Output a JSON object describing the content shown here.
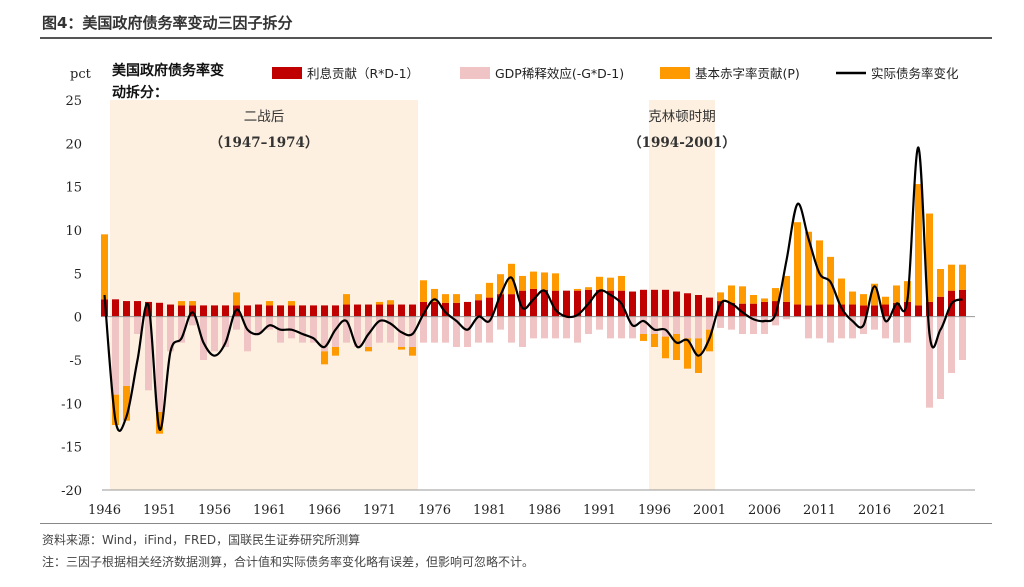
{
  "figure": {
    "title": "图4：美国政府债务率变动三因子拆分",
    "source": "资料来源：Wind，iFind，FRED，国联民生证券研究所测算",
    "note": "注：三因子根据相关经济数据测算，合计值和实际债务率变化略有误差，但影响可忽略不计。"
  },
  "chart_data": {
    "type": "bar",
    "title_lines": [
      "美国政府债务率变",
      "动拆分："
    ],
    "ylabel": "pct",
    "ylim": [
      -20,
      25
    ],
    "yticks": [
      25,
      20,
      15,
      10,
      5,
      0,
      -5,
      -10,
      -15,
      -20
    ],
    "xticks": [
      "1946",
      "1951",
      "1956",
      "1961",
      "1966",
      "1971",
      "1976",
      "1981",
      "1986",
      "1991",
      "1996",
      "2001",
      "2006",
      "2011",
      "2016",
      "2021"
    ],
    "legend_position": "top",
    "colors": {
      "interest": "#c00000",
      "gdp": "#f0c4c4",
      "deficit": "#ff9900",
      "actual": "#000000",
      "shade": "#fdf0e0"
    },
    "shaded_periods": [
      {
        "label": "二战后",
        "range_label": "（1947–1974）",
        "start": 1946.5,
        "end": 1974.5
      },
      {
        "label": "克林顿时期",
        "range_label": "（1994-2001）",
        "start": 1995.5,
        "end": 2001.5
      }
    ],
    "series": [
      {
        "name": "利息贡献（R*D-1）",
        "key": "interest"
      },
      {
        "name": "GDP稀释效应(-G*D-1)",
        "key": "gdp"
      },
      {
        "name": "基本赤字率贡献(P)",
        "key": "deficit"
      },
      {
        "name": "实际债务率变化",
        "key": "actual"
      }
    ],
    "years": [
      1946,
      1947,
      1948,
      1949,
      1950,
      1951,
      1952,
      1953,
      1954,
      1955,
      1956,
      1957,
      1958,
      1959,
      1960,
      1961,
      1962,
      1963,
      1964,
      1965,
      1966,
      1967,
      1968,
      1969,
      1970,
      1971,
      1972,
      1973,
      1974,
      1975,
      1976,
      1977,
      1978,
      1979,
      1980,
      1981,
      1982,
      1983,
      1984,
      1985,
      1986,
      1987,
      1988,
      1989,
      1990,
      1991,
      1992,
      1993,
      1994,
      1995,
      1996,
      1997,
      1998,
      1999,
      2000,
      2001,
      2002,
      2003,
      2004,
      2005,
      2006,
      2007,
      2008,
      2009,
      2010,
      2011,
      2012,
      2013,
      2014,
      2015,
      2016,
      2017,
      2018,
      2019,
      2020,
      2021,
      2022,
      2023,
      2024
    ],
    "interest": [
      2.0,
      2.0,
      1.8,
      1.8,
      1.7,
      1.6,
      1.4,
      1.3,
      1.3,
      1.3,
      1.3,
      1.3,
      1.3,
      1.3,
      1.4,
      1.3,
      1.3,
      1.3,
      1.3,
      1.3,
      1.3,
      1.3,
      1.4,
      1.4,
      1.4,
      1.4,
      1.4,
      1.4,
      1.4,
      1.7,
      1.7,
      1.6,
      1.6,
      1.7,
      1.9,
      2.2,
      2.6,
      2.6,
      3.0,
      3.2,
      3.1,
      3.0,
      3.0,
      3.0,
      3.1,
      3.1,
      3.0,
      3.0,
      2.9,
      3.1,
      3.1,
      3.1,
      2.9,
      2.7,
      2.5,
      2.2,
      1.8,
      1.6,
      1.5,
      1.5,
      1.7,
      1.8,
      1.7,
      1.4,
      1.3,
      1.4,
      1.4,
      1.4,
      1.4,
      1.3,
      1.3,
      1.4,
      1.6,
      1.7,
      1.3,
      1.7,
      2.3,
      3.0,
      3.1
    ],
    "gdp": [
      0.0,
      -9.0,
      -8.0,
      -2.0,
      -8.5,
      -11.0,
      -4.0,
      -3.0,
      -1.0,
      -5.0,
      -4.0,
      -3.5,
      -1.5,
      -4.0,
      -2.0,
      -1.5,
      -3.0,
      -2.5,
      -3.0,
      -3.0,
      -4.0,
      -3.5,
      -3.0,
      -3.5,
      -3.5,
      -3.0,
      -3.0,
      -3.5,
      -3.5,
      -3.0,
      -3.0,
      -3.0,
      -3.5,
      -3.5,
      -3.0,
      -3.0,
      -1.5,
      -3.0,
      -3.5,
      -2.5,
      -2.5,
      -2.5,
      -2.5,
      -3.0,
      -2.0,
      -1.5,
      -2.5,
      -2.5,
      -2.5,
      -2.0,
      -2.0,
      -2.3,
      -2.0,
      -2.5,
      -2.5,
      -1.5,
      -1.3,
      -1.5,
      -2.0,
      -2.0,
      -2.0,
      -1.0,
      -0.3,
      0.0,
      -2.5,
      -2.5,
      -3.0,
      -2.5,
      -2.5,
      -2.0,
      -1.5,
      -2.5,
      -3.0,
      -3.0,
      0.0,
      -10.5,
      -9.5,
      -6.5,
      -5.0
    ],
    "deficit": [
      7.5,
      -3.5,
      -4.0,
      0.0,
      0.0,
      -2.5,
      0.0,
      0.5,
      0.5,
      0.0,
      0.0,
      0.0,
      1.5,
      0.0,
      0.0,
      0.5,
      0.0,
      0.5,
      0.0,
      0.0,
      -1.5,
      -1.0,
      1.2,
      0.0,
      -0.5,
      0.3,
      0.5,
      -0.3,
      -1.0,
      2.5,
      1.5,
      1.0,
      1.0,
      0.0,
      0.7,
      1.7,
      2.3,
      3.5,
      1.7,
      2.0,
      2.0,
      2.0,
      0.0,
      0.2,
      0.3,
      1.5,
      1.5,
      1.7,
      0.0,
      -0.8,
      -1.5,
      -2.5,
      -3.0,
      -3.5,
      -4.0,
      -2.5,
      1.0,
      2.0,
      2.0,
      1.0,
      0.4,
      1.5,
      3.0,
      9.5,
      8.5,
      7.4,
      5.5,
      3.0,
      1.5,
      1.3,
      2.5,
      0.9,
      2.0,
      2.4,
      14.0,
      10.2,
      3.2,
      3.0,
      2.9
    ],
    "actual": [
      2.5,
      -12.0,
      -11.5,
      -5.0,
      1.3,
      -13.0,
      -4.0,
      -2.5,
      0.5,
      -3.0,
      -4.5,
      -3.0,
      0.8,
      -1.5,
      -2.0,
      -1.0,
      -1.5,
      -1.5,
      -2.0,
      -2.5,
      -3.5,
      -1.5,
      -0.5,
      -3.5,
      -2.0,
      -0.5,
      -0.8,
      -1.8,
      -2.0,
      0.3,
      2.0,
      0.5,
      -0.5,
      -1.5,
      0.0,
      -0.5,
      2.5,
      4.5,
      1.0,
      2.0,
      3.0,
      0.8,
      0.0,
      0.2,
      1.5,
      3.0,
      2.5,
      1.5,
      -1.0,
      -0.5,
      -1.5,
      -1.5,
      -3.0,
      -2.7,
      -4.5,
      -2.5,
      1.5,
      1.5,
      0.5,
      -0.3,
      -0.5,
      0.3,
      6.5,
      13.0,
      9.0,
      5.0,
      4.0,
      1.0,
      -0.5,
      -1.0,
      3.5,
      -0.5,
      1.5,
      2.0,
      19.5,
      -2.0,
      -1.5,
      1.5,
      2.0
    ]
  }
}
